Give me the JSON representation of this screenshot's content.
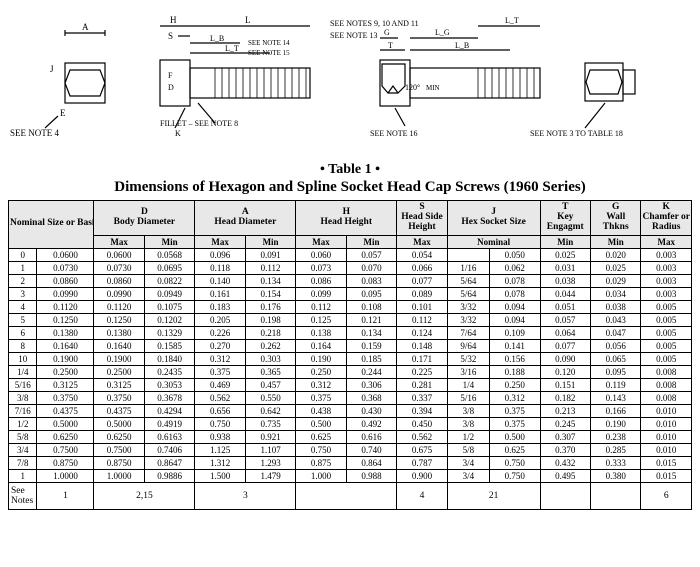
{
  "title_line1": "• Table 1 •",
  "title_line2": "Dimensions of Hexagon and Spline Socket Head Cap Screws (1960 Series)",
  "diagram_labels": [
    "A",
    "H",
    "L",
    "S",
    "J",
    "E",
    "F",
    "D",
    "K",
    "L_B",
    "L_T",
    "G",
    "T",
    "L_G",
    "L_B",
    "L_T",
    "120°",
    "MIN",
    "FILLET – SEE NOTE 8",
    "SEE NOTE 4",
    "SEE NOTES 9, 10 AND 11",
    "SEE NOTE 13",
    "SEE NOTE 14",
    "SEE NOTE 15",
    "SEE NOTE 16",
    "SEE NOTE 3 TO TABLE 18"
  ],
  "header": {
    "nominal": "Nominal Size or Basic Screw Diameter",
    "D": "D\nBody Diameter",
    "A": "A\nHead Diameter",
    "H": "H\nHead Height",
    "S": "S\nHead Side Height",
    "J": "J\nHex Socket Size",
    "T": "T\nKey Engagmt",
    "G": "G\nWall Thkns",
    "K": "K\nChamfer or Radius",
    "Max": "Max",
    "Min": "Min",
    "Nominal": "Nominal"
  },
  "rows": [
    [
      "0",
      "0.0600",
      "0.0600",
      "0.0568",
      "0.096",
      "0.091",
      "0.060",
      "0.057",
      "0.054",
      "",
      "0.050",
      "0.025",
      "0.020",
      "0.003"
    ],
    [
      "1",
      "0.0730",
      "0.0730",
      "0.0695",
      "0.118",
      "0.112",
      "0.073",
      "0.070",
      "0.066",
      "1/16",
      "0.062",
      "0.031",
      "0.025",
      "0.003"
    ],
    [
      "2",
      "0.0860",
      "0.0860",
      "0.0822",
      "0.140",
      "0.134",
      "0.086",
      "0.083",
      "0.077",
      "5/64",
      "0.078",
      "0.038",
      "0.029",
      "0.003"
    ],
    [
      "3",
      "0.0990",
      "0.0990",
      "0.0949",
      "0.161",
      "0.154",
      "0.099",
      "0.095",
      "0.089",
      "5/64",
      "0.078",
      "0.044",
      "0.034",
      "0.003"
    ],
    [
      "4",
      "0.1120",
      "0.1120",
      "0.1075",
      "0.183",
      "0.176",
      "0.112",
      "0.108",
      "0.101",
      "3/32",
      "0.094",
      "0.051",
      "0.038",
      "0.005"
    ],
    [
      "5",
      "0.1250",
      "0.1250",
      "0.1202",
      "0.205",
      "0.198",
      "0.125",
      "0.121",
      "0.112",
      "3/32",
      "0.094",
      "0.057",
      "0.043",
      "0.005"
    ],
    [
      "6",
      "0.1380",
      "0.1380",
      "0.1329",
      "0.226",
      "0.218",
      "0.138",
      "0.134",
      "0.124",
      "7/64",
      "0.109",
      "0.064",
      "0.047",
      "0.005"
    ],
    [
      "8",
      "0.1640",
      "0.1640",
      "0.1585",
      "0.270",
      "0.262",
      "0.164",
      "0.159",
      "0.148",
      "9/64",
      "0.141",
      "0.077",
      "0.056",
      "0.005"
    ],
    [
      "10",
      "0.1900",
      "0.1900",
      "0.1840",
      "0.312",
      "0.303",
      "0.190",
      "0.185",
      "0.171",
      "5/32",
      "0.156",
      "0.090",
      "0.065",
      "0.005"
    ],
    [
      "1/4",
      "0.2500",
      "0.2500",
      "0.2435",
      "0.375",
      "0.365",
      "0.250",
      "0.244",
      "0.225",
      "3/16",
      "0.188",
      "0.120",
      "0.095",
      "0.008"
    ],
    [
      "5/16",
      "0.3125",
      "0.3125",
      "0.3053",
      "0.469",
      "0.457",
      "0.312",
      "0.306",
      "0.281",
      "1/4",
      "0.250",
      "0.151",
      "0.119",
      "0.008"
    ],
    [
      "3/8",
      "0.3750",
      "0.3750",
      "0.3678",
      "0.562",
      "0.550",
      "0.375",
      "0.368",
      "0.337",
      "5/16",
      "0.312",
      "0.182",
      "0.143",
      "0.008"
    ],
    [
      "7/16",
      "0.4375",
      "0.4375",
      "0.4294",
      "0.656",
      "0.642",
      "0.438",
      "0.430",
      "0.394",
      "3/8",
      "0.375",
      "0.213",
      "0.166",
      "0.010"
    ],
    [
      "1/2",
      "0.5000",
      "0.5000",
      "0.4919",
      "0.750",
      "0.735",
      "0.500",
      "0.492",
      "0.450",
      "3/8",
      "0.375",
      "0.245",
      "0.190",
      "0.010"
    ],
    [
      "5/8",
      "0.6250",
      "0.6250",
      "0.6163",
      "0.938",
      "0.921",
      "0.625",
      "0.616",
      "0.562",
      "1/2",
      "0.500",
      "0.307",
      "0.238",
      "0.010"
    ],
    [
      "3/4",
      "0.7500",
      "0.7500",
      "0.7406",
      "1.125",
      "1.107",
      "0.750",
      "0.740",
      "0.675",
      "5/8",
      "0.625",
      "0.370",
      "0.285",
      "0.010"
    ],
    [
      "7/8",
      "0.8750",
      "0.8750",
      "0.8647",
      "1.312",
      "1.293",
      "0.875",
      "0.864",
      "0.787",
      "3/4",
      "0.750",
      "0.432",
      "0.333",
      "0.015"
    ],
    [
      "1",
      "1.0000",
      "1.0000",
      "0.9886",
      "1.500",
      "1.479",
      "1.000",
      "0.988",
      "0.900",
      "3/4",
      "0.750",
      "0.495",
      "0.380",
      "0.015"
    ]
  ],
  "footer": {
    "label": "See Notes",
    "c1": "1",
    "c2": "2,15",
    "c3": "3",
    "c4": "",
    "c5": "4",
    "c6": "21",
    "c7": "",
    "c8": "",
    "c9": "6"
  }
}
